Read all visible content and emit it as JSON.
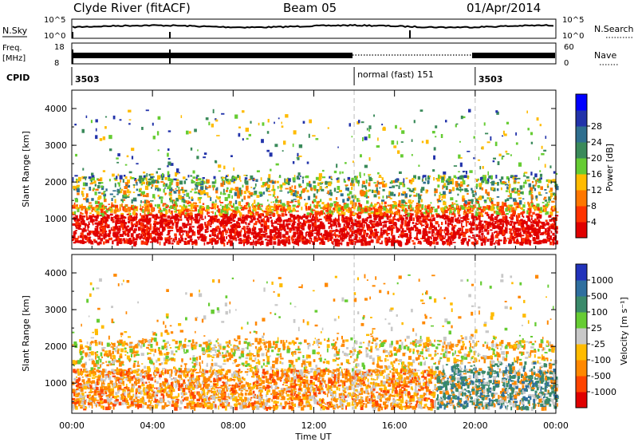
{
  "header": {
    "station": "Clyde River (fitACF)",
    "beam": "Beam 05",
    "date": "01/Apr/2014"
  },
  "status_panels": {
    "nsky_label": "N.Sky",
    "nsky_ticks": [
      "10^5",
      "10^0"
    ],
    "nsearch_label": "N.Search",
    "nsearch_ticks": [
      "10^5",
      "10^0"
    ],
    "freq_label_line1": "Freq.",
    "freq_label_line2": "[MHz]",
    "freq_ticks": [
      "18",
      "8"
    ],
    "nave_label": "Nave",
    "nave_ticks": [
      "60",
      "0"
    ],
    "cpid_label": "CPID",
    "cpid_segments": [
      {
        "start_hour": 0,
        "end_hour": 14,
        "label": "3503"
      },
      {
        "start_hour": 14,
        "end_hour": 20,
        "label": "normal (fast) 151"
      },
      {
        "start_hour": 20,
        "end_hour": 24,
        "label": "3503"
      }
    ]
  },
  "chart_data": [
    {
      "type": "heatmap",
      "name": "power",
      "ylabel": "Slant Range [km]",
      "ylim": [
        180,
        4500
      ],
      "yticks": [
        "1000",
        "2000",
        "3000",
        "4000"
      ],
      "xlim": [
        0,
        24
      ],
      "colorbar_label": "Power [dB]",
      "colorbar_ticks": [
        "4",
        "8",
        "12",
        "16",
        "20",
        "24",
        "28"
      ],
      "colorbar_colors": [
        "#0000ff",
        "#2233aa",
        "#2f6f8f",
        "#3a8a5a",
        "#66cc33",
        "#ffbb00",
        "#ff7700",
        "#ff3300",
        "#e00000"
      ]
    },
    {
      "type": "heatmap",
      "name": "velocity",
      "ylabel": "Slant Range [km]",
      "ylim": [
        180,
        4500
      ],
      "yticks": [
        "1000",
        "2000",
        "3000",
        "4000"
      ],
      "xlim": [
        0,
        24
      ],
      "colorbar_label": "Velocity [m s⁻¹]",
      "colorbar_ticks": [
        "1000",
        "500",
        "100",
        "25",
        "-25",
        "-100",
        "-500",
        "-1000"
      ],
      "colorbar_colors": [
        "#2233bb",
        "#2f6f9f",
        "#3a8a6a",
        "#66cc33",
        "#c8c8c8",
        "#ffbb00",
        "#ff8800",
        "#ff4400",
        "#e00000"
      ]
    }
  ],
  "xaxis": {
    "label": "Time UT",
    "ticks": [
      "00:00",
      "04:00",
      "08:00",
      "12:00",
      "16:00",
      "20:00",
      "00:00"
    ]
  }
}
